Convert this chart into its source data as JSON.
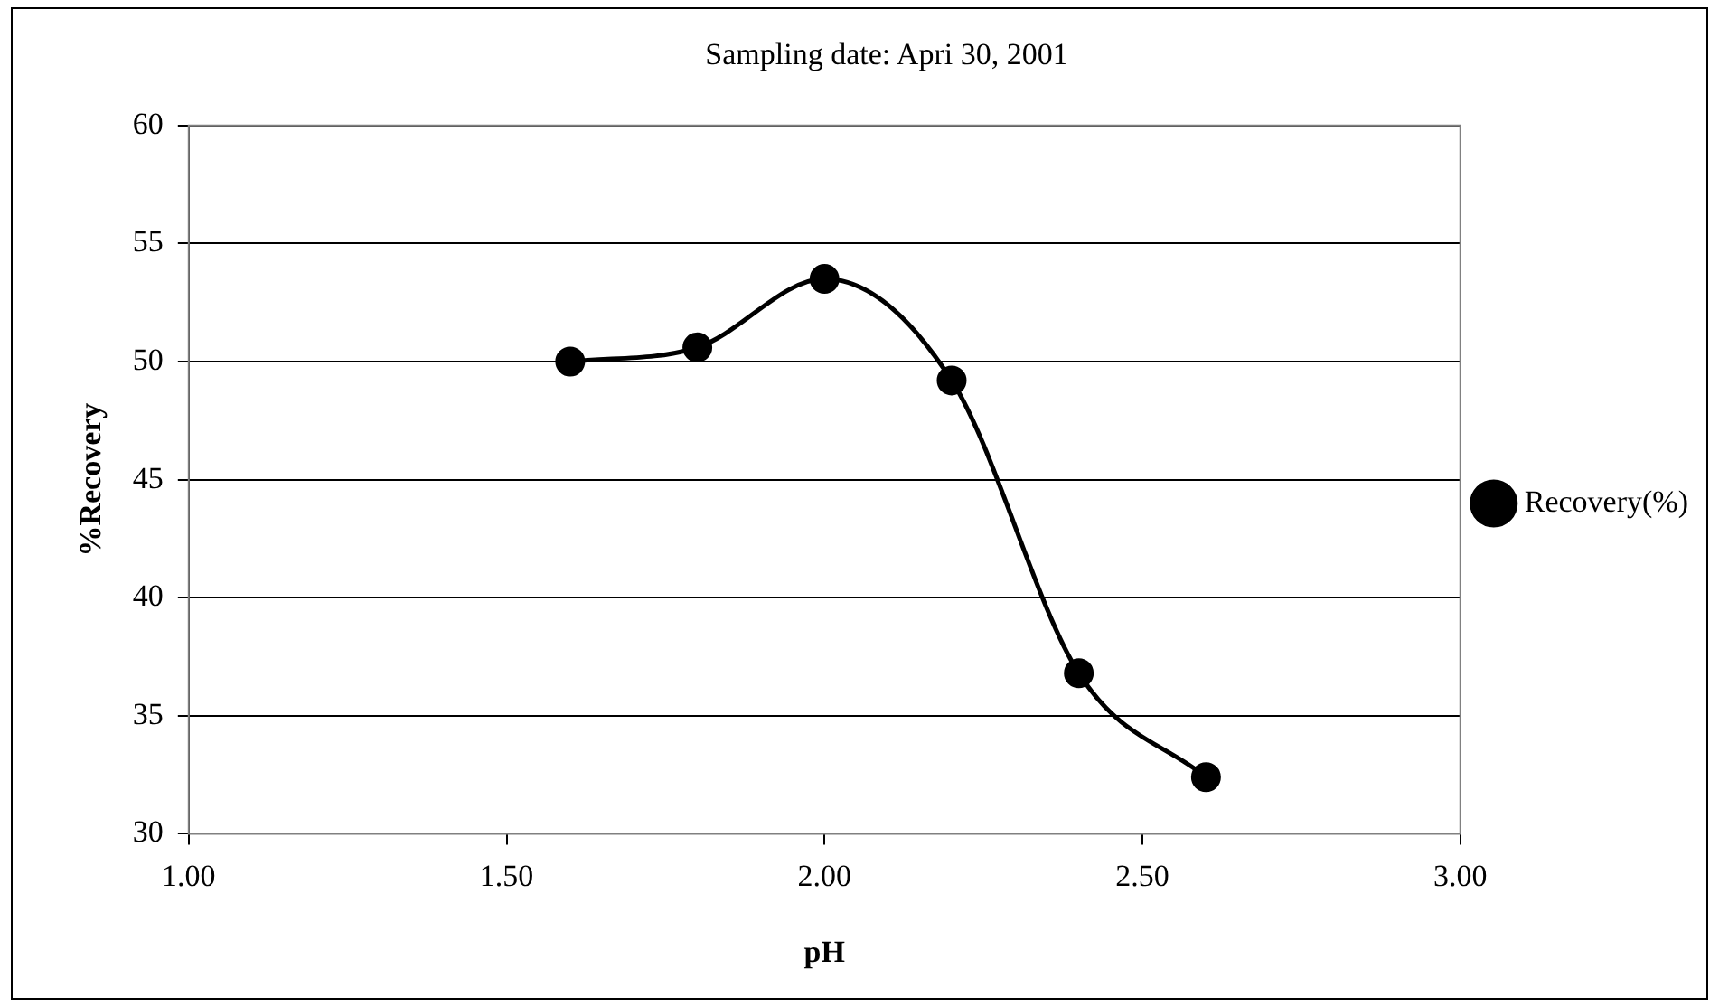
{
  "chart_data": {
    "type": "line",
    "title": "Sampling date: Apri 30, 2001",
    "xlabel": "pH",
    "ylabel": "%Recovery",
    "x": [
      1.6,
      1.8,
      2.0,
      2.2,
      2.4,
      2.6
    ],
    "series": [
      {
        "name": "Recovery(%)",
        "color": "#000000",
        "values": [
          50.0,
          50.6,
          53.5,
          49.2,
          36.8,
          32.4
        ]
      }
    ],
    "xlim": [
      1,
      3
    ],
    "xticks": [
      {
        "value": 1,
        "label": "1.00"
      },
      {
        "value": 1.5,
        "label": "1.50"
      },
      {
        "value": 2,
        "label": "2.00"
      },
      {
        "value": 2.5,
        "label": "2.50"
      },
      {
        "value": 3,
        "label": "3.00"
      }
    ],
    "ylim": [
      30,
      60
    ],
    "yticks": [
      30,
      35,
      40,
      45,
      50,
      55,
      60
    ],
    "grid": "y",
    "legend": "right",
    "marker": "circle",
    "line_style": "solid"
  }
}
